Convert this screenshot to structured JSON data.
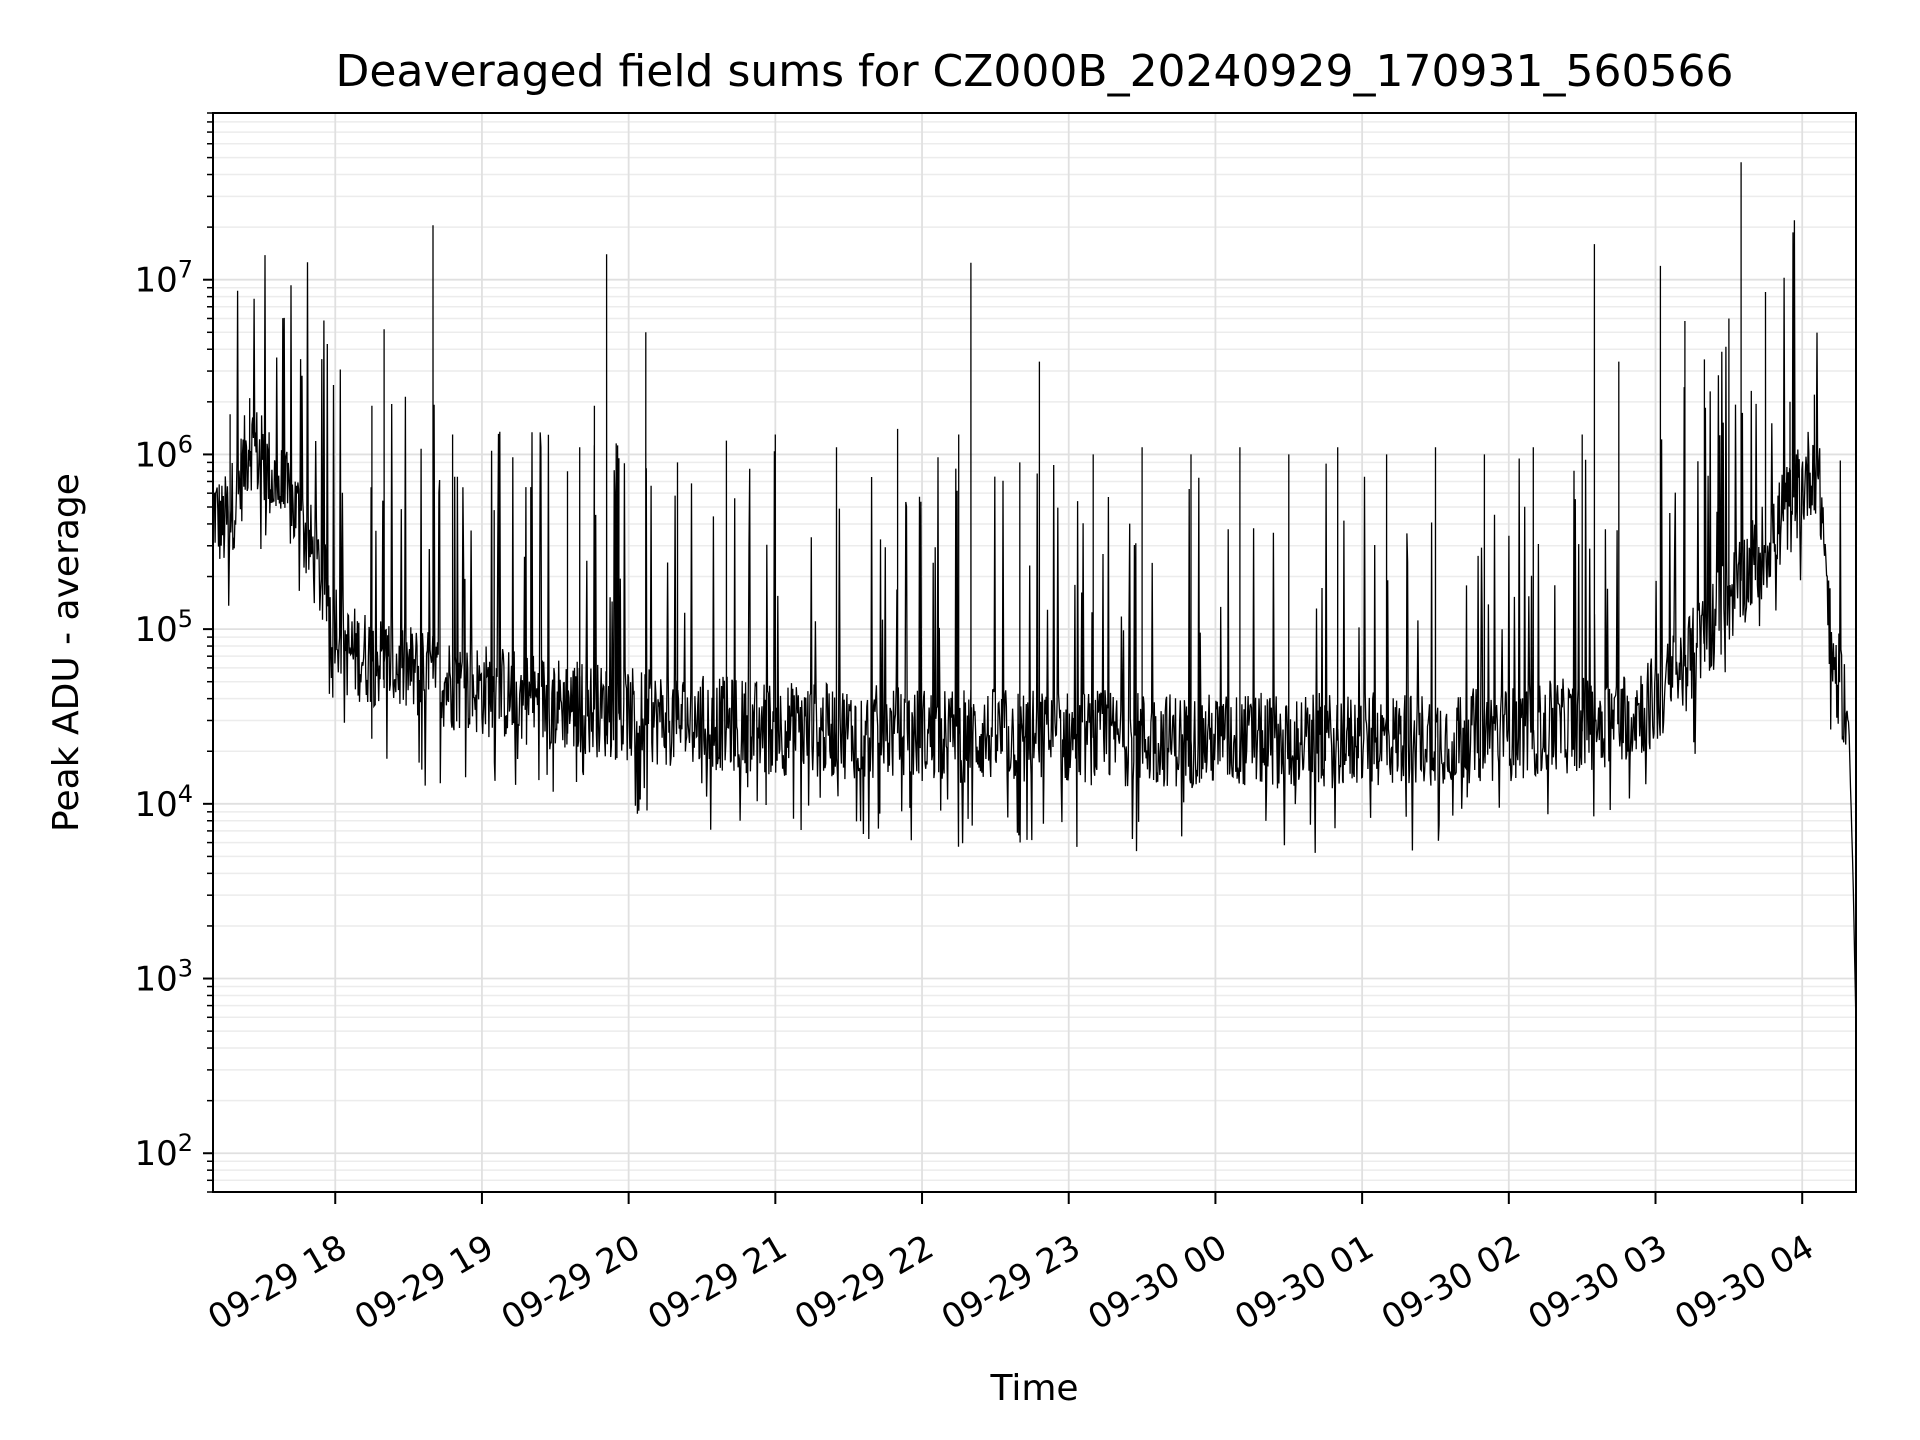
{
  "chart_data": {
    "type": "line",
    "title": "Deaveraged field sums for CZ000B_20240929_170931_560566",
    "xlabel": "Time",
    "ylabel": "Peak ADU - average",
    "yscale": "log",
    "ylim": [
      60,
      90000000
    ],
    "xlim": [
      "2024-09-29 17:10",
      "2024-09-30 04:22"
    ],
    "grid": true,
    "line_color": "#000000",
    "x_ticks": [
      {
        "label": "09-29 18",
        "value": "2024-09-29 18:00"
      },
      {
        "label": "09-29 19",
        "value": "2024-09-29 19:00"
      },
      {
        "label": "09-29 20",
        "value": "2024-09-29 20:00"
      },
      {
        "label": "09-29 21",
        "value": "2024-09-29 21:00"
      },
      {
        "label": "09-29 22",
        "value": "2024-09-29 22:00"
      },
      {
        "label": "09-29 23",
        "value": "2024-09-29 23:00"
      },
      {
        "label": "09-30 00",
        "value": "2024-09-30 00:00"
      },
      {
        "label": "09-30 01",
        "value": "2024-09-30 01:00"
      },
      {
        "label": "09-30 02",
        "value": "2024-09-30 02:00"
      },
      {
        "label": "09-30 03",
        "value": "2024-09-30 03:00"
      },
      {
        "label": "09-30 04",
        "value": "2024-09-30 04:00"
      }
    ],
    "y_ticks": [
      {
        "base": "10",
        "exp": "2",
        "value": 100
      },
      {
        "base": "10",
        "exp": "3",
        "value": 1000
      },
      {
        "base": "10",
        "exp": "4",
        "value": 10000
      },
      {
        "base": "10",
        "exp": "5",
        "value": 100000
      },
      {
        "base": "10",
        "exp": "6",
        "value": 1000000
      },
      {
        "base": "10",
        "exp": "7",
        "value": 10000000
      }
    ],
    "series": [
      {
        "baseline": [
          [
            "2024-09-29 17:10",
            500000
          ],
          [
            "2024-09-29 17:14",
            380000
          ],
          [
            "2024-09-29 17:20",
            600000
          ],
          [
            "2024-09-29 17:25",
            1200000
          ],
          [
            "2024-09-29 17:35",
            700000
          ],
          [
            "2024-09-29 17:45",
            450000
          ],
          [
            "2024-09-29 17:55",
            180000
          ],
          [
            "2024-09-29 18:05",
            75000
          ],
          [
            "2024-09-29 18:20",
            65000
          ],
          [
            "2024-09-29 18:40",
            52000
          ],
          [
            "2024-09-29 19:00",
            45000
          ],
          [
            "2024-09-29 19:30",
            38000
          ],
          [
            "2024-09-29 20:00",
            32000
          ],
          [
            "2024-09-29 21:00",
            27000
          ],
          [
            "2024-09-29 22:00",
            25000
          ],
          [
            "2024-09-29 23:00",
            24000
          ],
          [
            "2024-09-30 00:00",
            23000
          ],
          [
            "2024-09-30 01:00",
            23000
          ],
          [
            "2024-09-30 02:00",
            25000
          ],
          [
            "2024-09-30 02:40",
            30000
          ],
          [
            "2024-09-30 03:00",
            38000
          ],
          [
            "2024-09-30 03:15",
            70000
          ],
          [
            "2024-09-30 03:30",
            150000
          ],
          [
            "2024-09-30 03:45",
            300000
          ],
          [
            "2024-09-30 04:00",
            650000
          ],
          [
            "2024-09-30 04:05",
            900000
          ],
          [
            "2024-09-30 04:08",
            500000
          ],
          [
            "2024-09-30 04:10",
            200000
          ],
          [
            "2024-09-30 04:12",
            70000
          ],
          [
            "2024-09-30 04:16",
            45000
          ],
          [
            "2024-09-30 04:19",
            30000
          ],
          [
            "2024-09-30 04:21",
            3000
          ],
          [
            "2024-09-30 04:22",
            500
          ]
        ],
        "spikes": [
          [
            "2024-09-29 17:17",
            1700000
          ],
          [
            "2024-09-29 17:25",
            2100000
          ],
          [
            "2024-09-29 18:15",
            1900000
          ],
          [
            "2024-09-29 18:20",
            5200000
          ],
          [
            "2024-09-29 18:40",
            20500000
          ],
          [
            "2024-09-29 18:48",
            1300000
          ],
          [
            "2024-09-29 19:05",
            480000
          ],
          [
            "2024-09-29 19:20",
            650000
          ],
          [
            "2024-09-29 19:35",
            800000
          ],
          [
            "2024-09-29 19:40",
            1100000
          ],
          [
            "2024-09-29 19:46",
            1900000
          ],
          [
            "2024-09-29 19:51",
            14000000
          ],
          [
            "2024-09-29 19:56",
            950000
          ],
          [
            "2024-09-29 20:07",
            5000000
          ],
          [
            "2024-09-29 20:20",
            900000
          ],
          [
            "2024-09-29 20:40",
            1200000
          ],
          [
            "2024-09-29 21:00",
            1300000
          ],
          [
            "2024-09-29 21:25",
            1100000
          ],
          [
            "2024-09-29 21:50",
            1400000
          ],
          [
            "2024-09-29 22:15",
            1300000
          ],
          [
            "2024-09-29 22:20",
            12500000
          ],
          [
            "2024-09-29 22:40",
            900000
          ],
          [
            "2024-09-29 22:48",
            3400000
          ],
          [
            "2024-09-29 23:10",
            1000000
          ],
          [
            "2024-09-29 23:30",
            1100000
          ],
          [
            "2024-09-29 23:50",
            1000000
          ],
          [
            "2024-09-30 00:10",
            1100000
          ],
          [
            "2024-09-30 00:30",
            1000000
          ],
          [
            "2024-09-30 00:50",
            1100000
          ],
          [
            "2024-09-30 01:10",
            1000000
          ],
          [
            "2024-09-30 01:30",
            1100000
          ],
          [
            "2024-09-30 01:50",
            1000000
          ],
          [
            "2024-09-30 02:10",
            1100000
          ],
          [
            "2024-09-30 02:30",
            1300000
          ],
          [
            "2024-09-30 02:35",
            16000000
          ],
          [
            "2024-09-30 02:45",
            3400000
          ],
          [
            "2024-09-30 03:02",
            12000000
          ],
          [
            "2024-09-30 03:12",
            5800000
          ],
          [
            "2024-09-30 03:20",
            3500000
          ],
          [
            "2024-09-30 03:30",
            6000000
          ],
          [
            "2024-09-30 03:35",
            47000000
          ],
          [
            "2024-09-30 03:45",
            8500000
          ],
          [
            "2024-09-30 03:55",
            2000000
          ],
          [
            "2024-09-30 04:05",
            2200000
          ]
        ]
      }
    ]
  }
}
